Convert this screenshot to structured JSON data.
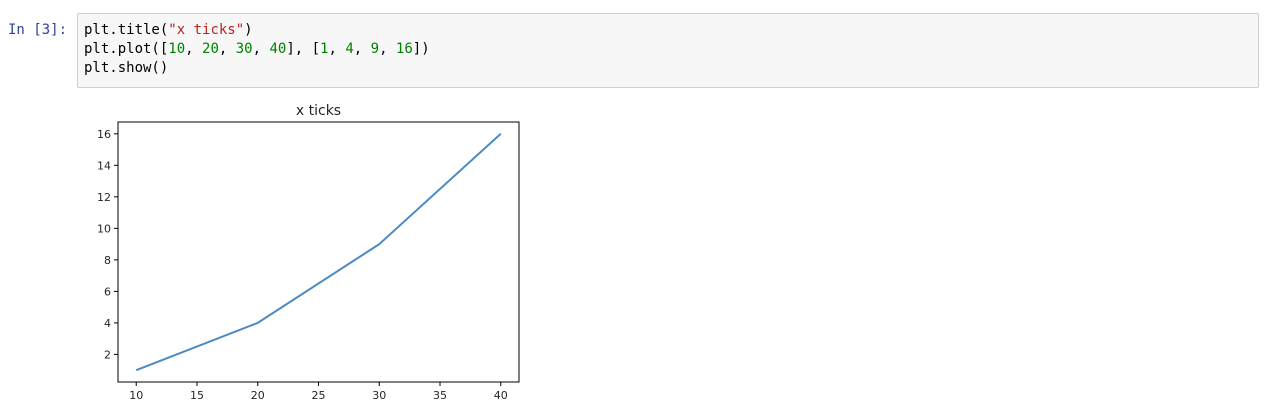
{
  "cell": {
    "prompt": "In [3]:",
    "code_lines": [
      [
        {
          "t": "plain",
          "v": "plt.title("
        },
        {
          "t": "str",
          "v": "\"x ticks\""
        },
        {
          "t": "plain",
          "v": ")"
        }
      ],
      [
        {
          "t": "plain",
          "v": "plt.plot(["
        },
        {
          "t": "num",
          "v": "10"
        },
        {
          "t": "plain",
          "v": ", "
        },
        {
          "t": "num",
          "v": "20"
        },
        {
          "t": "plain",
          "v": ", "
        },
        {
          "t": "num",
          "v": "30"
        },
        {
          "t": "plain",
          "v": ", "
        },
        {
          "t": "num",
          "v": "40"
        },
        {
          "t": "plain",
          "v": "], ["
        },
        {
          "t": "num",
          "v": "1"
        },
        {
          "t": "plain",
          "v": ", "
        },
        {
          "t": "num",
          "v": "4"
        },
        {
          "t": "plain",
          "v": ", "
        },
        {
          "t": "num",
          "v": "9"
        },
        {
          "t": "plain",
          "v": ", "
        },
        {
          "t": "num",
          "v": "16"
        },
        {
          "t": "plain",
          "v": "])"
        }
      ],
      [
        {
          "t": "plain",
          "v": "plt.show()"
        }
      ]
    ]
  },
  "colors": {
    "line": "#4c8ac3",
    "prompt": "#303f9f",
    "string": "#ba2121",
    "number": "#008000"
  },
  "chart_data": {
    "type": "line",
    "title": "x ticks",
    "xlabel": "",
    "ylabel": "",
    "x": [
      10,
      20,
      30,
      40
    ],
    "series": [
      {
        "values": [
          1,
          4,
          9,
          16
        ]
      }
    ],
    "xlim": [
      8.5,
      41.5
    ],
    "ylim": [
      0.25,
      16.75
    ],
    "xticks": [
      10,
      15,
      20,
      25,
      30,
      35,
      40
    ],
    "yticks": [
      2,
      4,
      6,
      8,
      10,
      12,
      14,
      16
    ],
    "grid": false
  }
}
